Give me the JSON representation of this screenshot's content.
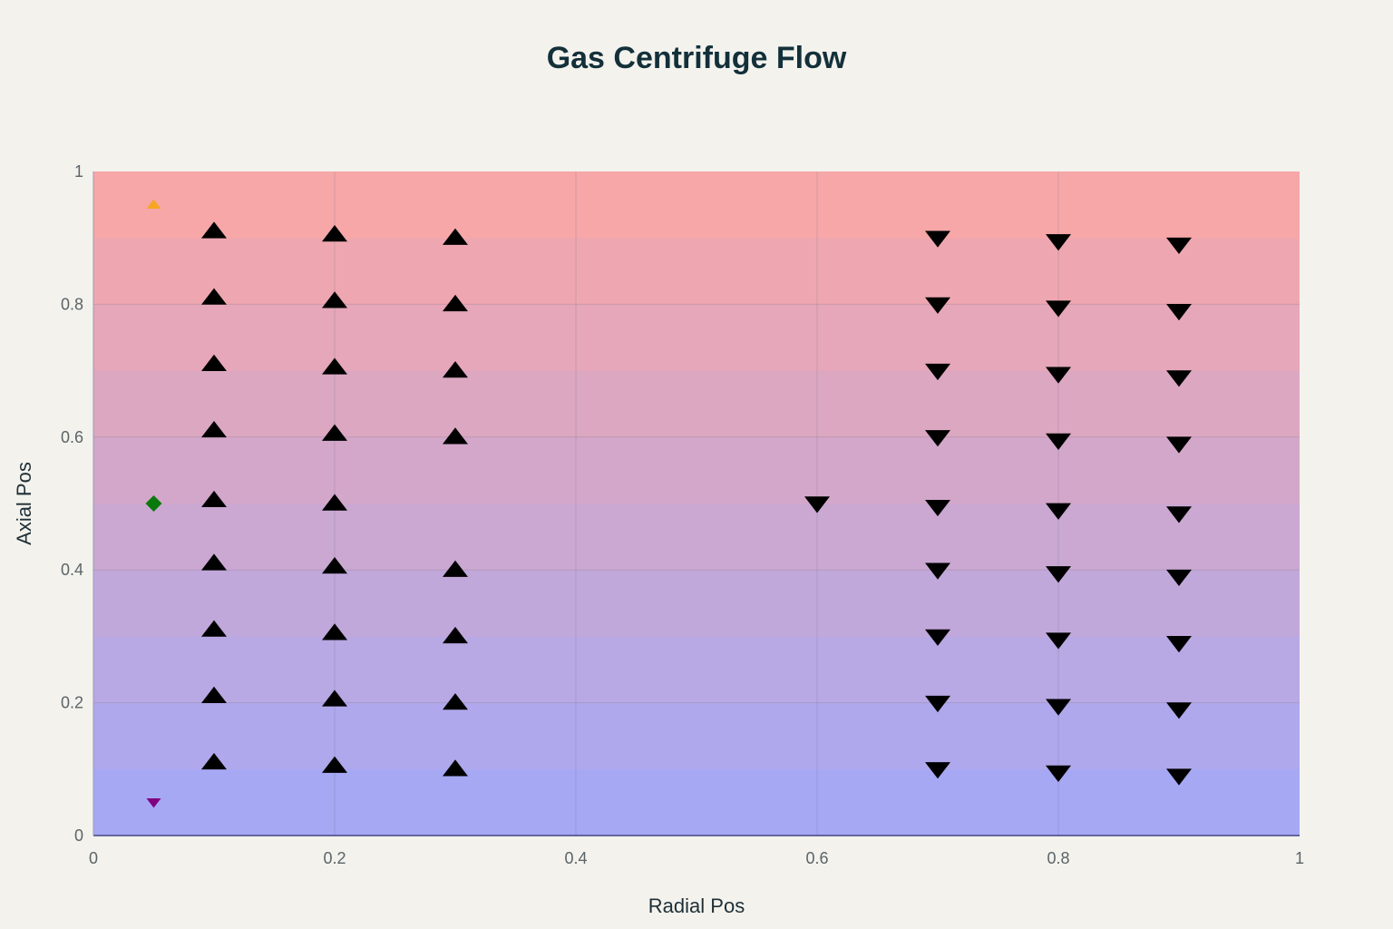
{
  "chart_data": {
    "type": "scatter",
    "title": "Gas Centrifuge Flow",
    "xlabel": "Radial Pos",
    "ylabel": "Axial Pos",
    "xlim": [
      0,
      1
    ],
    "ylim": [
      0,
      1
    ],
    "xticks": [
      0,
      0.2,
      0.4,
      0.6,
      0.8,
      1
    ],
    "xtick_labels": [
      "0",
      "0.2",
      "0.4",
      "0.6",
      "0.8",
      "1"
    ],
    "yticks": [
      0,
      0.2,
      0.4,
      0.6,
      0.8,
      1
    ],
    "ytick_labels": [
      "0",
      "0.2",
      "0.4",
      "0.6",
      "0.8",
      "1"
    ],
    "grid": true,
    "background_gradient": {
      "bottom_color": "#a6a8f4",
      "top_color": "#f7a7a8",
      "bands": 10
    },
    "series": [
      {
        "marker": "triangle-up",
        "color": "#000000",
        "points": [
          [
            0.1,
            0.91
          ],
          [
            0.1,
            0.81
          ],
          [
            0.1,
            0.71
          ],
          [
            0.1,
            0.61
          ],
          [
            0.1,
            0.505
          ],
          [
            0.1,
            0.41
          ],
          [
            0.1,
            0.31
          ],
          [
            0.1,
            0.21
          ],
          [
            0.1,
            0.11
          ],
          [
            0.2,
            0.905
          ],
          [
            0.2,
            0.805
          ],
          [
            0.2,
            0.705
          ],
          [
            0.2,
            0.605
          ],
          [
            0.2,
            0.5
          ],
          [
            0.2,
            0.405
          ],
          [
            0.2,
            0.305
          ],
          [
            0.2,
            0.205
          ],
          [
            0.2,
            0.105
          ],
          [
            0.3,
            0.9
          ],
          [
            0.3,
            0.8
          ],
          [
            0.3,
            0.7
          ],
          [
            0.3,
            0.6
          ],
          [
            0.3,
            0.4
          ],
          [
            0.3,
            0.3
          ],
          [
            0.3,
            0.2
          ],
          [
            0.3,
            0.1
          ]
        ]
      },
      {
        "marker": "triangle-down",
        "color": "#000000",
        "points": [
          [
            0.6,
            0.5
          ],
          [
            0.7,
            0.9
          ],
          [
            0.7,
            0.8
          ],
          [
            0.7,
            0.7
          ],
          [
            0.7,
            0.6
          ],
          [
            0.7,
            0.495
          ],
          [
            0.7,
            0.4
          ],
          [
            0.7,
            0.3
          ],
          [
            0.7,
            0.2
          ],
          [
            0.7,
            0.1
          ],
          [
            0.8,
            0.895
          ],
          [
            0.8,
            0.795
          ],
          [
            0.8,
            0.695
          ],
          [
            0.8,
            0.595
          ],
          [
            0.8,
            0.49
          ],
          [
            0.8,
            0.395
          ],
          [
            0.8,
            0.295
          ],
          [
            0.8,
            0.195
          ],
          [
            0.8,
            0.095
          ],
          [
            0.9,
            0.89
          ],
          [
            0.9,
            0.79
          ],
          [
            0.9,
            0.69
          ],
          [
            0.9,
            0.59
          ],
          [
            0.9,
            0.485
          ],
          [
            0.9,
            0.39
          ],
          [
            0.9,
            0.29
          ],
          [
            0.9,
            0.19
          ],
          [
            0.9,
            0.09
          ]
        ]
      },
      {
        "marker": "triangle-up",
        "color": "#f5a623",
        "points": [
          [
            0.05,
            0.95
          ]
        ]
      },
      {
        "marker": "diamond",
        "color": "#0a7a0a",
        "points": [
          [
            0.05,
            0.5
          ]
        ]
      },
      {
        "marker": "triangle-down",
        "color": "#800080",
        "points": [
          [
            0.05,
            0.05
          ]
        ]
      }
    ]
  }
}
